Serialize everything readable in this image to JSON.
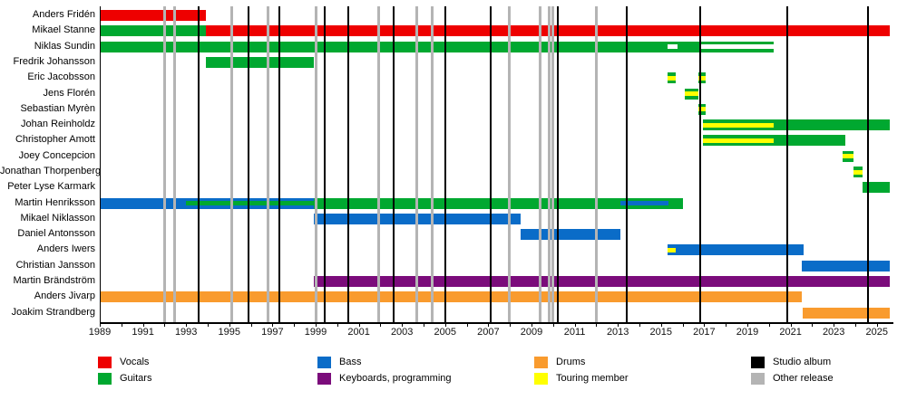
{
  "colors": {
    "vocals": "#EE0000",
    "guitars": "#00A830",
    "bass": "#0A6CC8",
    "keyboards": "#7B0C7B",
    "drums": "#F99B2E",
    "touring": "#FFFF00",
    "white": "#FFFFFF",
    "studio_album": "#000000",
    "other_release": "#B4B4B4"
  },
  "chart_data": {
    "type": "timeline",
    "axis": {
      "start_year": 1989,
      "end_year": 2025.8,
      "tick_step": 1,
      "label_step": 2,
      "label_years": [
        1989,
        1991,
        1993,
        1995,
        1997,
        1999,
        2001,
        2003,
        2005,
        2007,
        2009,
        2011,
        2013,
        2015,
        2017,
        2019,
        2021,
        2023,
        2025
      ]
    },
    "events": {
      "studio_album_years": [
        1993.6,
        1995.9,
        1997.3,
        1999.4,
        2000.5,
        2002.6,
        2005.0,
        2007.1,
        2010.2,
        2013.4,
        2016.8,
        2020.85,
        2024.6
      ],
      "other_release_years": [
        1992.0,
        1992.45,
        1995.1,
        1996.8,
        1999.0,
        2001.9,
        2003.7,
        2004.4,
        2007.95,
        2009.4,
        2009.8,
        2010.0,
        2012.0
      ]
    },
    "members": [
      {
        "name": "Anders Fridén",
        "bars": [
          {
            "color": "vocals",
            "start": 1989,
            "end": 1993.9
          }
        ]
      },
      {
        "name": "Mikael Stanne",
        "bars": [
          {
            "color": "guitars",
            "start": 1989,
            "end": 1993.9
          },
          {
            "color": "vocals",
            "start": 1993.9,
            "end": 2025.6
          }
        ]
      },
      {
        "name": "Niklas Sundin",
        "bars": [
          {
            "color": "guitars",
            "start": 1989,
            "end": 2016.8,
            "stripes": [
              {
                "color": "white",
                "start": 2015.3,
                "end": 2015.75
              }
            ]
          },
          {
            "color": "guitars",
            "start": 2016.8,
            "end": 2020.2,
            "stripes": [
              {
                "color": "white",
                "start": 2016.8,
                "end": 2020.2
              }
            ]
          }
        ]
      },
      {
        "name": "Fredrik Johansson",
        "bars": [
          {
            "color": "guitars",
            "start": 1993.9,
            "end": 1998.9
          }
        ]
      },
      {
        "name": "Eric Jacobsson",
        "bars": [
          {
            "color": "guitars",
            "start": 2015.3,
            "end": 2015.7,
            "stripes": [
              {
                "color": "touring",
                "start": 2015.3,
                "end": 2015.7
              }
            ]
          },
          {
            "color": "guitars",
            "start": 2016.75,
            "end": 2017.05,
            "stripes": [
              {
                "color": "touring",
                "start": 2016.75,
                "end": 2017.05
              }
            ]
          }
        ]
      },
      {
        "name": "Jens Florén",
        "bars": [
          {
            "color": "guitars",
            "start": 2016.1,
            "end": 2016.75,
            "stripes": [
              {
                "color": "touring",
                "start": 2016.1,
                "end": 2016.75
              }
            ]
          }
        ]
      },
      {
        "name": "Sebastian Myrèn",
        "bars": [
          {
            "color": "guitars",
            "start": 2016.75,
            "end": 2017.05,
            "stripes": [
              {
                "color": "touring",
                "start": 2016.75,
                "end": 2017.05
              }
            ]
          }
        ]
      },
      {
        "name": "Johan Reinholdz",
        "bars": [
          {
            "color": "guitars",
            "start": 2016.95,
            "end": 2025.6,
            "stripes": [
              {
                "color": "touring",
                "start": 2016.95,
                "end": 2020.2
              }
            ]
          }
        ]
      },
      {
        "name": "Christopher Amott",
        "bars": [
          {
            "color": "guitars",
            "start": 2016.95,
            "end": 2023.55,
            "stripes": [
              {
                "color": "touring",
                "start": 2016.95,
                "end": 2020.2
              }
            ]
          }
        ]
      },
      {
        "name": "Joey Concepcion",
        "bars": [
          {
            "color": "guitars",
            "start": 2023.4,
            "end": 2023.9,
            "stripes": [
              {
                "color": "touring",
                "start": 2023.4,
                "end": 2023.9
              }
            ]
          }
        ]
      },
      {
        "name": "Jonathan Thorpenberg",
        "bars": [
          {
            "color": "guitars",
            "start": 2023.9,
            "end": 2024.35,
            "stripes": [
              {
                "color": "touring",
                "start": 2023.9,
                "end": 2024.35
              }
            ]
          }
        ]
      },
      {
        "name": "Peter Lyse Karmark",
        "bars": [
          {
            "color": "guitars",
            "start": 2024.35,
            "end": 2025.6
          }
        ]
      },
      {
        "name": "Martin Henriksson",
        "bars": [
          {
            "color": "bass",
            "start": 1989,
            "end": 1998.9,
            "stripes": [
              {
                "color": "guitars",
                "start": 1993.0,
                "end": 1998.9
              }
            ]
          },
          {
            "color": "guitars",
            "start": 1998.9,
            "end": 2016.0,
            "stripes": [
              {
                "color": "bass",
                "start": 2013.1,
                "end": 2015.35
              }
            ]
          }
        ]
      },
      {
        "name": "Mikael Niklasson",
        "bars": [
          {
            "color": "bass",
            "start": 1998.9,
            "end": 2008.5
          }
        ]
      },
      {
        "name": "Daniel Antonsson",
        "bars": [
          {
            "color": "bass",
            "start": 2008.5,
            "end": 2013.1
          }
        ]
      },
      {
        "name": "Anders Iwers",
        "bars": [
          {
            "color": "bass",
            "start": 2015.3,
            "end": 2021.6,
            "stripes": [
              {
                "color": "touring",
                "start": 2015.3,
                "end": 2015.7
              }
            ]
          }
        ]
      },
      {
        "name": "Christian Jansson",
        "bars": [
          {
            "color": "bass",
            "start": 2021.5,
            "end": 2025.6
          }
        ]
      },
      {
        "name": "Martin Brändström",
        "bars": [
          {
            "color": "keyboards",
            "start": 1998.9,
            "end": 2025.6
          }
        ]
      },
      {
        "name": "Anders Jivarp",
        "bars": [
          {
            "color": "drums",
            "start": 1989,
            "end": 2021.5
          }
        ]
      },
      {
        "name": "Joakim Strandberg",
        "bars": [
          {
            "color": "drums",
            "start": 2021.55,
            "end": 2025.6
          }
        ]
      }
    ],
    "legend": {
      "items": [
        {
          "label": "Vocals",
          "color": "vocals"
        },
        {
          "label": "Guitars",
          "color": "guitars"
        },
        {
          "label": "Bass",
          "color": "bass"
        },
        {
          "label": "Keyboards, programming",
          "color": "keyboards"
        },
        {
          "label": "Drums",
          "color": "drums"
        },
        {
          "label": "Touring member",
          "color": "touring"
        },
        {
          "label": "Studio album",
          "color": "studio_album"
        },
        {
          "label": "Other release",
          "color": "other_release"
        }
      ]
    }
  }
}
